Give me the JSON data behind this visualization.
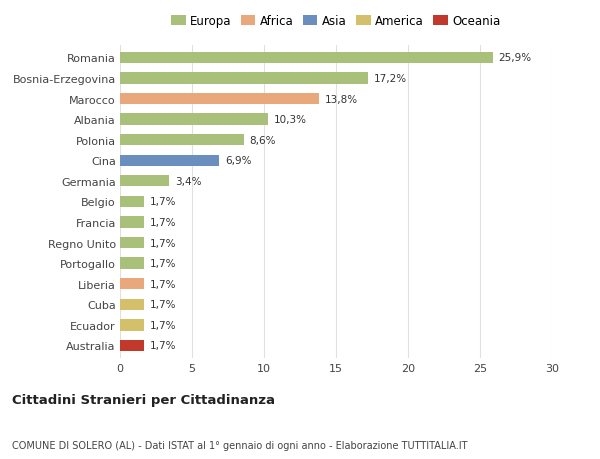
{
  "categories": [
    "Romania",
    "Bosnia-Erzegovina",
    "Marocco",
    "Albania",
    "Polonia",
    "Cina",
    "Germania",
    "Belgio",
    "Francia",
    "Regno Unito",
    "Portogallo",
    "Liberia",
    "Cuba",
    "Ecuador",
    "Australia"
  ],
  "values": [
    25.9,
    17.2,
    13.8,
    10.3,
    8.6,
    6.9,
    3.4,
    1.7,
    1.7,
    1.7,
    1.7,
    1.7,
    1.7,
    1.7,
    1.7
  ],
  "labels": [
    "25,9%",
    "17,2%",
    "13,8%",
    "10,3%",
    "8,6%",
    "6,9%",
    "3,4%",
    "1,7%",
    "1,7%",
    "1,7%",
    "1,7%",
    "1,7%",
    "1,7%",
    "1,7%",
    "1,7%"
  ],
  "colors": [
    "#a8c07a",
    "#a8c07a",
    "#e8a87c",
    "#a8c07a",
    "#a8c07a",
    "#6a8fbf",
    "#a8c07a",
    "#a8c07a",
    "#a8c07a",
    "#a8c07a",
    "#a8c07a",
    "#e8a87c",
    "#d4c06a",
    "#d4c06a",
    "#c0392b"
  ],
  "legend_labels": [
    "Europa",
    "Africa",
    "Asia",
    "America",
    "Oceania"
  ],
  "legend_colors": [
    "#a8c07a",
    "#e8a87c",
    "#6a8fbf",
    "#d4c06a",
    "#c0392b"
  ],
  "title": "Cittadini Stranieri per Cittadinanza",
  "subtitle": "COMUNE DI SOLERO (AL) - Dati ISTAT al 1° gennaio di ogni anno - Elaborazione TUTTITALIA.IT",
  "xlim": [
    0,
    30
  ],
  "xticks": [
    0,
    5,
    10,
    15,
    20,
    25,
    30
  ],
  "background_color": "#ffffff",
  "bar_height": 0.55,
  "grid_color": "#e0e0e0"
}
